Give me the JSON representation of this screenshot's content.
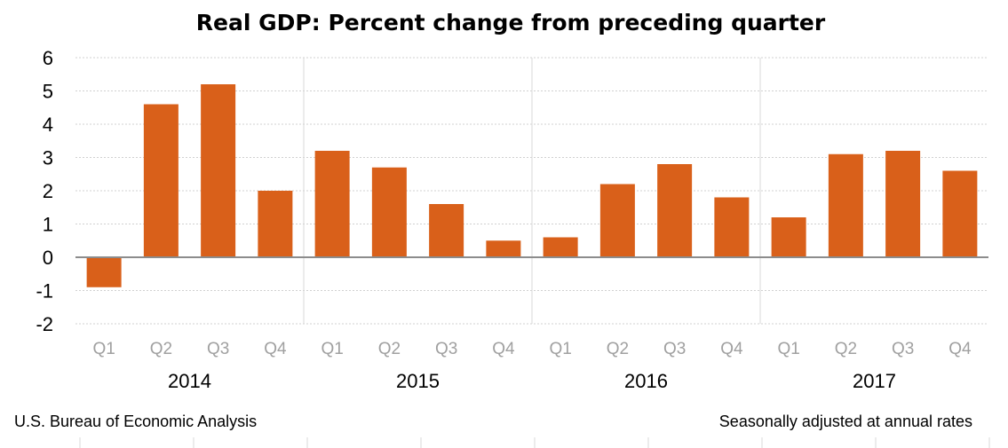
{
  "chart_data": {
    "type": "bar",
    "title": "Real GDP:  Percent change from preceding quarter",
    "xlabel": "",
    "ylabel": "",
    "ylim": [
      -2,
      6
    ],
    "yticks": [
      "6",
      "5",
      "4",
      "3",
      "2",
      "1",
      "0",
      "-1",
      "-2"
    ],
    "grid": true,
    "groups": [
      {
        "year": "2014",
        "quarters": [
          "Q1",
          "Q2",
          "Q3",
          "Q4"
        ],
        "values": [
          -0.9,
          4.6,
          5.2,
          2.0
        ]
      },
      {
        "year": "2015",
        "quarters": [
          "Q1",
          "Q2",
          "Q3",
          "Q4"
        ],
        "values": [
          3.2,
          2.7,
          1.6,
          0.5
        ]
      },
      {
        "year": "2016",
        "quarters": [
          "Q1",
          "Q2",
          "Q3",
          "Q4"
        ],
        "values": [
          0.6,
          2.2,
          2.8,
          1.8
        ]
      },
      {
        "year": "2017",
        "quarters": [
          "Q1",
          "Q2",
          "Q3",
          "Q4"
        ],
        "values": [
          1.2,
          3.1,
          3.2,
          2.6
        ]
      }
    ],
    "bar_color": "#D9601A",
    "source": "U.S. Bureau of Economic Analysis",
    "note": "Seasonally adjusted at annual rates"
  }
}
